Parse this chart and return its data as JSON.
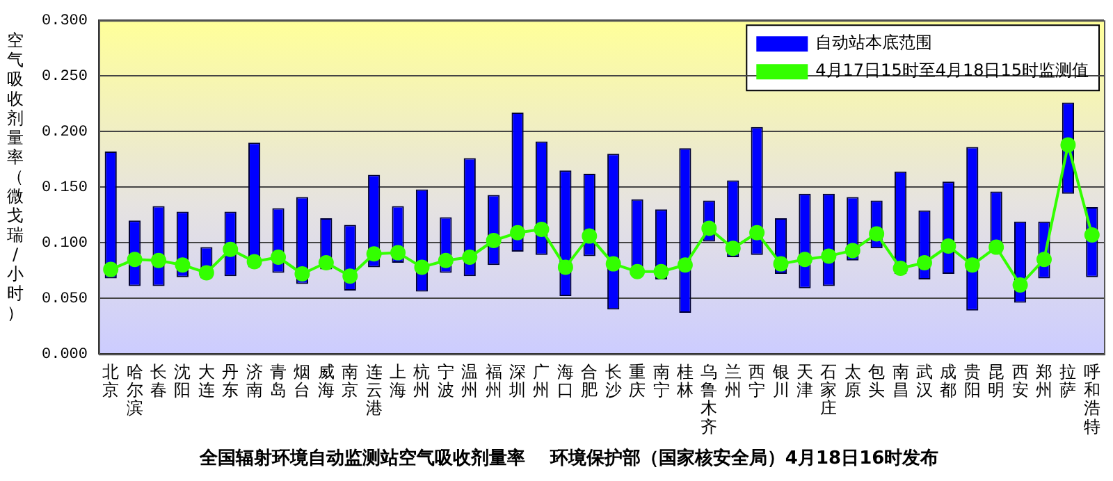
{
  "chart_data": {
    "type": "bar",
    "title": "全国辐射环境自动监测站空气吸收剂量率    环境保护部（国家核安全局）4月18日16时发布",
    "ylabel": "空气吸收剂量率（微戈瑞/小时）",
    "categories": [
      "北京",
      "哈尔滨",
      "长春",
      "沈阳",
      "大连",
      "丹东",
      "济南",
      "青岛",
      "烟台",
      "威海",
      "南京",
      "连云港",
      "上海",
      "杭州",
      "宁波",
      "温州",
      "福州",
      "深圳",
      "广州",
      "海口",
      "合肥",
      "长沙",
      "重庆",
      "南宁",
      "桂林",
      "乌鲁木齐",
      "兰州",
      "西宁",
      "银川",
      "天津",
      "石家庄",
      "太原",
      "包头",
      "南昌",
      "武汉",
      "成都",
      "贵阳",
      "昆明",
      "西安",
      "郑州",
      "拉萨",
      "呼和浩特"
    ],
    "series": [
      {
        "name": "自动站本底范围",
        "color": "#0000ff",
        "base": [
          0.068,
          0.061,
          0.061,
          0.069,
          0.068,
          0.07,
          0.078,
          0.073,
          0.063,
          0.076,
          0.057,
          0.078,
          0.082,
          0.056,
          0.073,
          0.07,
          0.08,
          0.092,
          0.089,
          0.052,
          0.088,
          0.04,
          0.07,
          0.067,
          0.037,
          0.101,
          0.087,
          0.089,
          0.072,
          0.059,
          0.061,
          0.084,
          0.095,
          0.072,
          0.067,
          0.072,
          0.039,
          0.091,
          0.046,
          0.068,
          0.144,
          0.069
        ],
        "values": [
          0.114,
          0.059,
          0.072,
          0.059,
          0.028,
          0.058,
          0.112,
          0.058,
          0.078,
          0.046,
          0.059,
          0.083,
          0.051,
          0.092,
          0.05,
          0.106,
          0.063,
          0.125,
          0.102,
          0.113,
          0.074,
          0.14,
          0.069,
          0.063,
          0.148,
          0.037,
          0.069,
          0.115,
          0.05,
          0.085,
          0.083,
          0.057,
          0.043,
          0.092,
          0.062,
          0.083,
          0.147,
          0.055,
          0.073,
          0.051,
          0.082,
          0.063
        ]
      },
      {
        "name": "4月17日15时至4月18日15时监测值",
        "type": "line",
        "color": "#33ff00",
        "marker": "circle",
        "values": [
          0.076,
          0.085,
          0.084,
          0.08,
          0.073,
          0.094,
          0.083,
          0.087,
          0.072,
          0.082,
          0.07,
          0.09,
          0.091,
          0.078,
          0.084,
          0.087,
          0.102,
          0.109,
          0.112,
          0.078,
          0.106,
          0.081,
          0.074,
          0.074,
          0.08,
          0.113,
          0.095,
          0.109,
          0.081,
          0.085,
          0.088,
          0.093,
          0.108,
          0.077,
          0.082,
          0.097,
          0.08,
          0.096,
          0.062,
          0.085,
          0.188,
          0.107
        ]
      }
    ],
    "ylim": [
      0,
      0.3
    ],
    "yticks": [
      {
        "value": 0,
        "label": "0.000"
      },
      {
        "value": 0.05,
        "label": "0.050"
      },
      {
        "value": 0.1,
        "label": "0.100"
      },
      {
        "value": 0.15,
        "label": "0.150"
      },
      {
        "value": 0.2,
        "label": "0.200"
      },
      {
        "value": 0.25,
        "label": "0.250"
      },
      {
        "value": 0.3,
        "label": "0.300"
      }
    ],
    "grid": "y",
    "legend": "top right"
  }
}
